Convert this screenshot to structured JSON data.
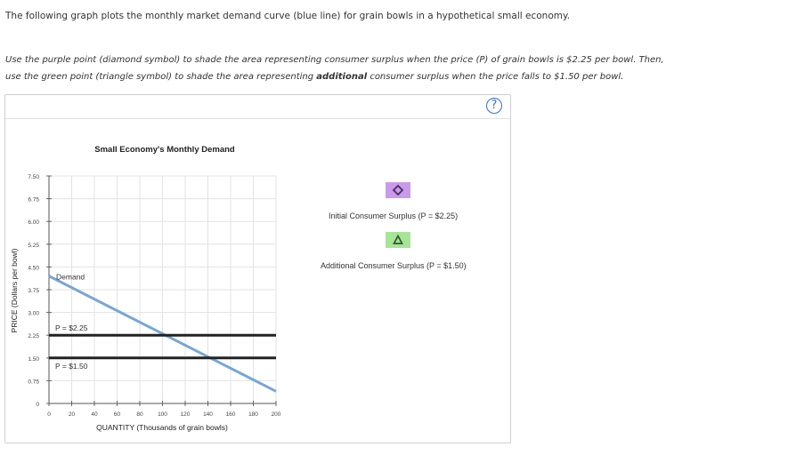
{
  "intro_text": "The following graph plots the monthly market demand curve (blue line) for grain bowls in a hypothetical small economy.",
  "instructions": {
    "line1": "Use the purple point (diamond symbol) to shade the area representing consumer surplus when the price (P) of grain bowls is $2.25 per bowl. Then,",
    "line2_before": "use the green point (triangle symbol) to shade the area representing ",
    "line2_bold": "additional",
    "line2_after": " consumer surplus when the price falls to $1.50 per bowl."
  },
  "help_label": "?",
  "tools": [
    {
      "label": "Initial Consumer Surplus (P = $2.25)",
      "symbol": "diamond",
      "icon": "diamond-icon",
      "color": "#c99be6",
      "symbol_color": "#4a2870"
    },
    {
      "label": "Additional Consumer Surplus (P = $1.50)",
      "symbol": "triangle",
      "icon": "triangle-icon",
      "color": "#a8e39a",
      "symbol_color": "#2f5f25"
    }
  ],
  "chart_data": {
    "type": "line",
    "title": "Small Economy's Monthly Demand",
    "xlabel": "QUANTITY (Thousands of grain bowls)",
    "ylabel": "PRICE (Dollars per bowl)",
    "xlim": [
      0,
      200
    ],
    "ylim": [
      0,
      7.5
    ],
    "xticks": [
      0,
      20,
      40,
      60,
      80,
      100,
      120,
      140,
      160,
      180,
      200
    ],
    "yticks": [
      "0",
      "0.75",
      "1.50",
      "2.25",
      "3.00",
      "3.75",
      "4.50",
      "5.25",
      "6.00",
      "6.75",
      "7.50"
    ],
    "series": [
      {
        "name": "Demand",
        "color": "#7aa6cf",
        "x": [
          0,
          200
        ],
        "y": [
          4.2,
          0.4
        ]
      }
    ],
    "price_lines": [
      {
        "label": "P = $2.25",
        "price": 2.25,
        "color": "#222222"
      },
      {
        "label": "P = $1.50",
        "price": 1.5,
        "color": "#222222"
      }
    ],
    "grid": true
  }
}
